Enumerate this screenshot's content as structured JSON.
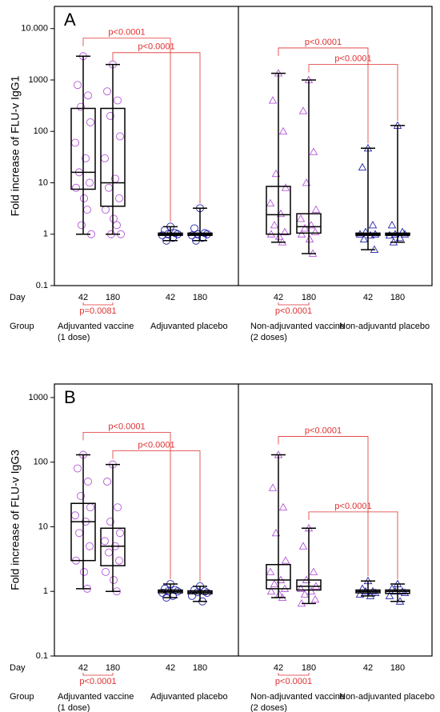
{
  "chart_data": [
    {
      "type": "box",
      "panel": "A",
      "ylabel": "Fold increase of FLU-v IgG1",
      "log_scale": true,
      "ylim": [
        0.1,
        27000
      ],
      "yticks": [
        {
          "value": 10000,
          "label": "10.000"
        },
        1000,
        100,
        10,
        1,
        0.1
      ],
      "day_label": "Day",
      "group_label": "Group",
      "categories": [
        "42",
        "180",
        "42",
        "180",
        "42",
        "180",
        "42",
        "180"
      ],
      "groups": [
        {
          "name": "Adjuvanted vaccine",
          "note": "(1 dose)"
        },
        {
          "name": "Adjuvanted placebo"
        },
        {
          "name": "Non-adjuvanted vaccine",
          "note": "(2 doses)"
        },
        {
          "name": "Non-adjuvantd placebo"
        }
      ],
      "colors": [
        "#b455d8",
        "#b455d8",
        "#2222a8",
        "#2222a8",
        "#b455d8",
        "#b455d8",
        "#2222a8",
        "#2222a8"
      ],
      "markers": [
        "circle",
        "circle",
        "circle",
        "circle",
        "triangle",
        "triangle",
        "triangle",
        "triangle"
      ],
      "boxes": [
        {
          "min": 1,
          "q1": 7.5,
          "median": 16,
          "q3": 280,
          "max": 2900,
          "points": [
            2900,
            800,
            500,
            300,
            150,
            60,
            30,
            16,
            10,
            8,
            5,
            3,
            1.5,
            1
          ]
        },
        {
          "min": 1,
          "q1": 3.5,
          "median": 10,
          "q3": 280,
          "max": 2000,
          "points": [
            2000,
            600,
            400,
            200,
            80,
            30,
            12,
            8,
            5,
            3,
            2,
            1.5,
            1,
            1
          ]
        },
        {
          "min": 0.75,
          "q1": 0.95,
          "median": 1,
          "q3": 1.05,
          "max": 1.4,
          "points": [
            1.4,
            1.2,
            1.05,
            1,
            1,
            0.95,
            0.85,
            0.75
          ]
        },
        {
          "min": 0.75,
          "q1": 0.95,
          "median": 1,
          "q3": 1.05,
          "max": 3.2,
          "points": [
            3.2,
            1.3,
            1.05,
            1,
            1,
            0.95,
            0.85,
            0.75
          ]
        },
        {
          "min": 0.7,
          "q1": 1,
          "median": 2.4,
          "q3": 8.5,
          "max": 1350,
          "points": [
            1350,
            400,
            100,
            15,
            8,
            4,
            2.5,
            1.5,
            1.1,
            1,
            0.9,
            0.7
          ]
        },
        {
          "min": 0.42,
          "q1": 1.05,
          "median": 1.4,
          "q3": 2.5,
          "max": 1000,
          "points": [
            1000,
            250,
            40,
            10,
            3,
            2,
            1.5,
            1.3,
            1.1,
            1,
            0.8,
            0.42
          ]
        },
        {
          "min": 0.5,
          "q1": 0.95,
          "median": 1,
          "q3": 1.05,
          "max": 47,
          "points": [
            47,
            20,
            1.5,
            1.1,
            1,
            1,
            0.95,
            0.8,
            0.5
          ]
        },
        {
          "min": 0.7,
          "q1": 0.95,
          "median": 1,
          "q3": 1.05,
          "max": 130,
          "points": [
            130,
            1.5,
            1.1,
            1,
            1,
            0.95,
            0.85,
            0.7
          ]
        }
      ],
      "comparisons": [
        {
          "between": [
            0,
            2
          ],
          "y": 6500,
          "label": "p<0.0001"
        },
        {
          "between": [
            1,
            3
          ],
          "y": 3400,
          "label": "p<0.0001"
        },
        {
          "between": [
            4,
            6
          ],
          "y": 4200,
          "label": "p<0.0001"
        },
        {
          "between": [
            5,
            7
          ],
          "y": 2000,
          "label": "p<0.0001"
        }
      ],
      "day_comparisons": [
        {
          "between": [
            0,
            1
          ],
          "label": "p=0.0081"
        },
        {
          "between": [
            4,
            5
          ],
          "label": "p<0.0001"
        }
      ]
    },
    {
      "type": "box",
      "panel": "B",
      "ylabel": "Fold increase of FLU-v IgG3",
      "log_scale": true,
      "ylim": [
        0.1,
        1620
      ],
      "yticks": [
        1000,
        100,
        10,
        1,
        0.1
      ],
      "day_label": "Day",
      "group_label": "Group",
      "categories": [
        "42",
        "180",
        "42",
        "180",
        "42",
        "180",
        "42",
        "180"
      ],
      "groups": [
        {
          "name": "Adjuvanted vaccine",
          "note": "(1 dose)"
        },
        {
          "name": "Adjuvanted placebo"
        },
        {
          "name": "Non-adjuvanted vaccine",
          "note": "(2 doses)"
        },
        {
          "name": "Non-adjuvanted placebo"
        }
      ],
      "colors": [
        "#b455d8",
        "#b455d8",
        "#2222a8",
        "#2222a8",
        "#b455d8",
        "#b455d8",
        "#2222a8",
        "#2222a8"
      ],
      "markers": [
        "circle",
        "circle",
        "circle",
        "circle",
        "triangle",
        "triangle",
        "triangle",
        "triangle"
      ],
      "boxes": [
        {
          "min": 1.1,
          "q1": 3,
          "median": 12,
          "q3": 23,
          "max": 130,
          "points": [
            130,
            80,
            50,
            30,
            20,
            15,
            12,
            8,
            5,
            3,
            2,
            1.1
          ]
        },
        {
          "min": 1,
          "q1": 2.5,
          "median": 5,
          "q3": 9.5,
          "max": 92,
          "points": [
            92,
            50,
            20,
            12,
            8,
            6,
            5,
            4,
            3,
            2,
            1.5,
            1
          ]
        },
        {
          "min": 0.8,
          "q1": 0.95,
          "median": 1,
          "q3": 1.05,
          "max": 1.3,
          "points": [
            1.3,
            1.1,
            1.05,
            1,
            1,
            0.95,
            0.85,
            0.8
          ]
        },
        {
          "min": 0.7,
          "q1": 0.92,
          "median": 0.97,
          "q3": 1.02,
          "max": 1.2,
          "points": [
            1.2,
            1.05,
            1,
            0.97,
            0.95,
            0.85,
            0.7
          ]
        },
        {
          "min": 0.8,
          "q1": 1.1,
          "median": 1.5,
          "q3": 2.6,
          "max": 130,
          "points": [
            130,
            40,
            20,
            8,
            3,
            2,
            1.5,
            1.3,
            1.1,
            1,
            0.9,
            0.8
          ]
        },
        {
          "min": 0.65,
          "q1": 1.05,
          "median": 1.2,
          "q3": 1.5,
          "max": 9.5,
          "points": [
            9.5,
            5,
            2,
            1.5,
            1.2,
            1.1,
            1,
            0.9,
            0.75,
            0.65
          ]
        },
        {
          "min": 0.85,
          "q1": 0.95,
          "median": 1,
          "q3": 1.05,
          "max": 1.45,
          "points": [
            1.45,
            1.1,
            1,
            1,
            0.95,
            0.9,
            0.85
          ]
        },
        {
          "min": 0.7,
          "q1": 0.93,
          "median": 1,
          "q3": 1.05,
          "max": 1.3,
          "points": [
            1.3,
            1.1,
            1,
            1,
            0.95,
            0.85,
            0.7
          ]
        }
      ],
      "comparisons": [
        {
          "between": [
            0,
            2
          ],
          "y": 290,
          "label": "p<0.0001"
        },
        {
          "between": [
            1,
            3
          ],
          "y": 150,
          "label": "p<0.0001"
        },
        {
          "between": [
            4,
            6
          ],
          "y": 250,
          "label": "p<0.0001"
        },
        {
          "between": [
            5,
            7
          ],
          "y": 17,
          "label": "p<0.0001"
        }
      ],
      "day_comparisons": [
        {
          "between": [
            0,
            1
          ],
          "label": "p<0.0001"
        },
        {
          "between": [
            4,
            5
          ],
          "label": "p<0.0001"
        }
      ]
    }
  ]
}
